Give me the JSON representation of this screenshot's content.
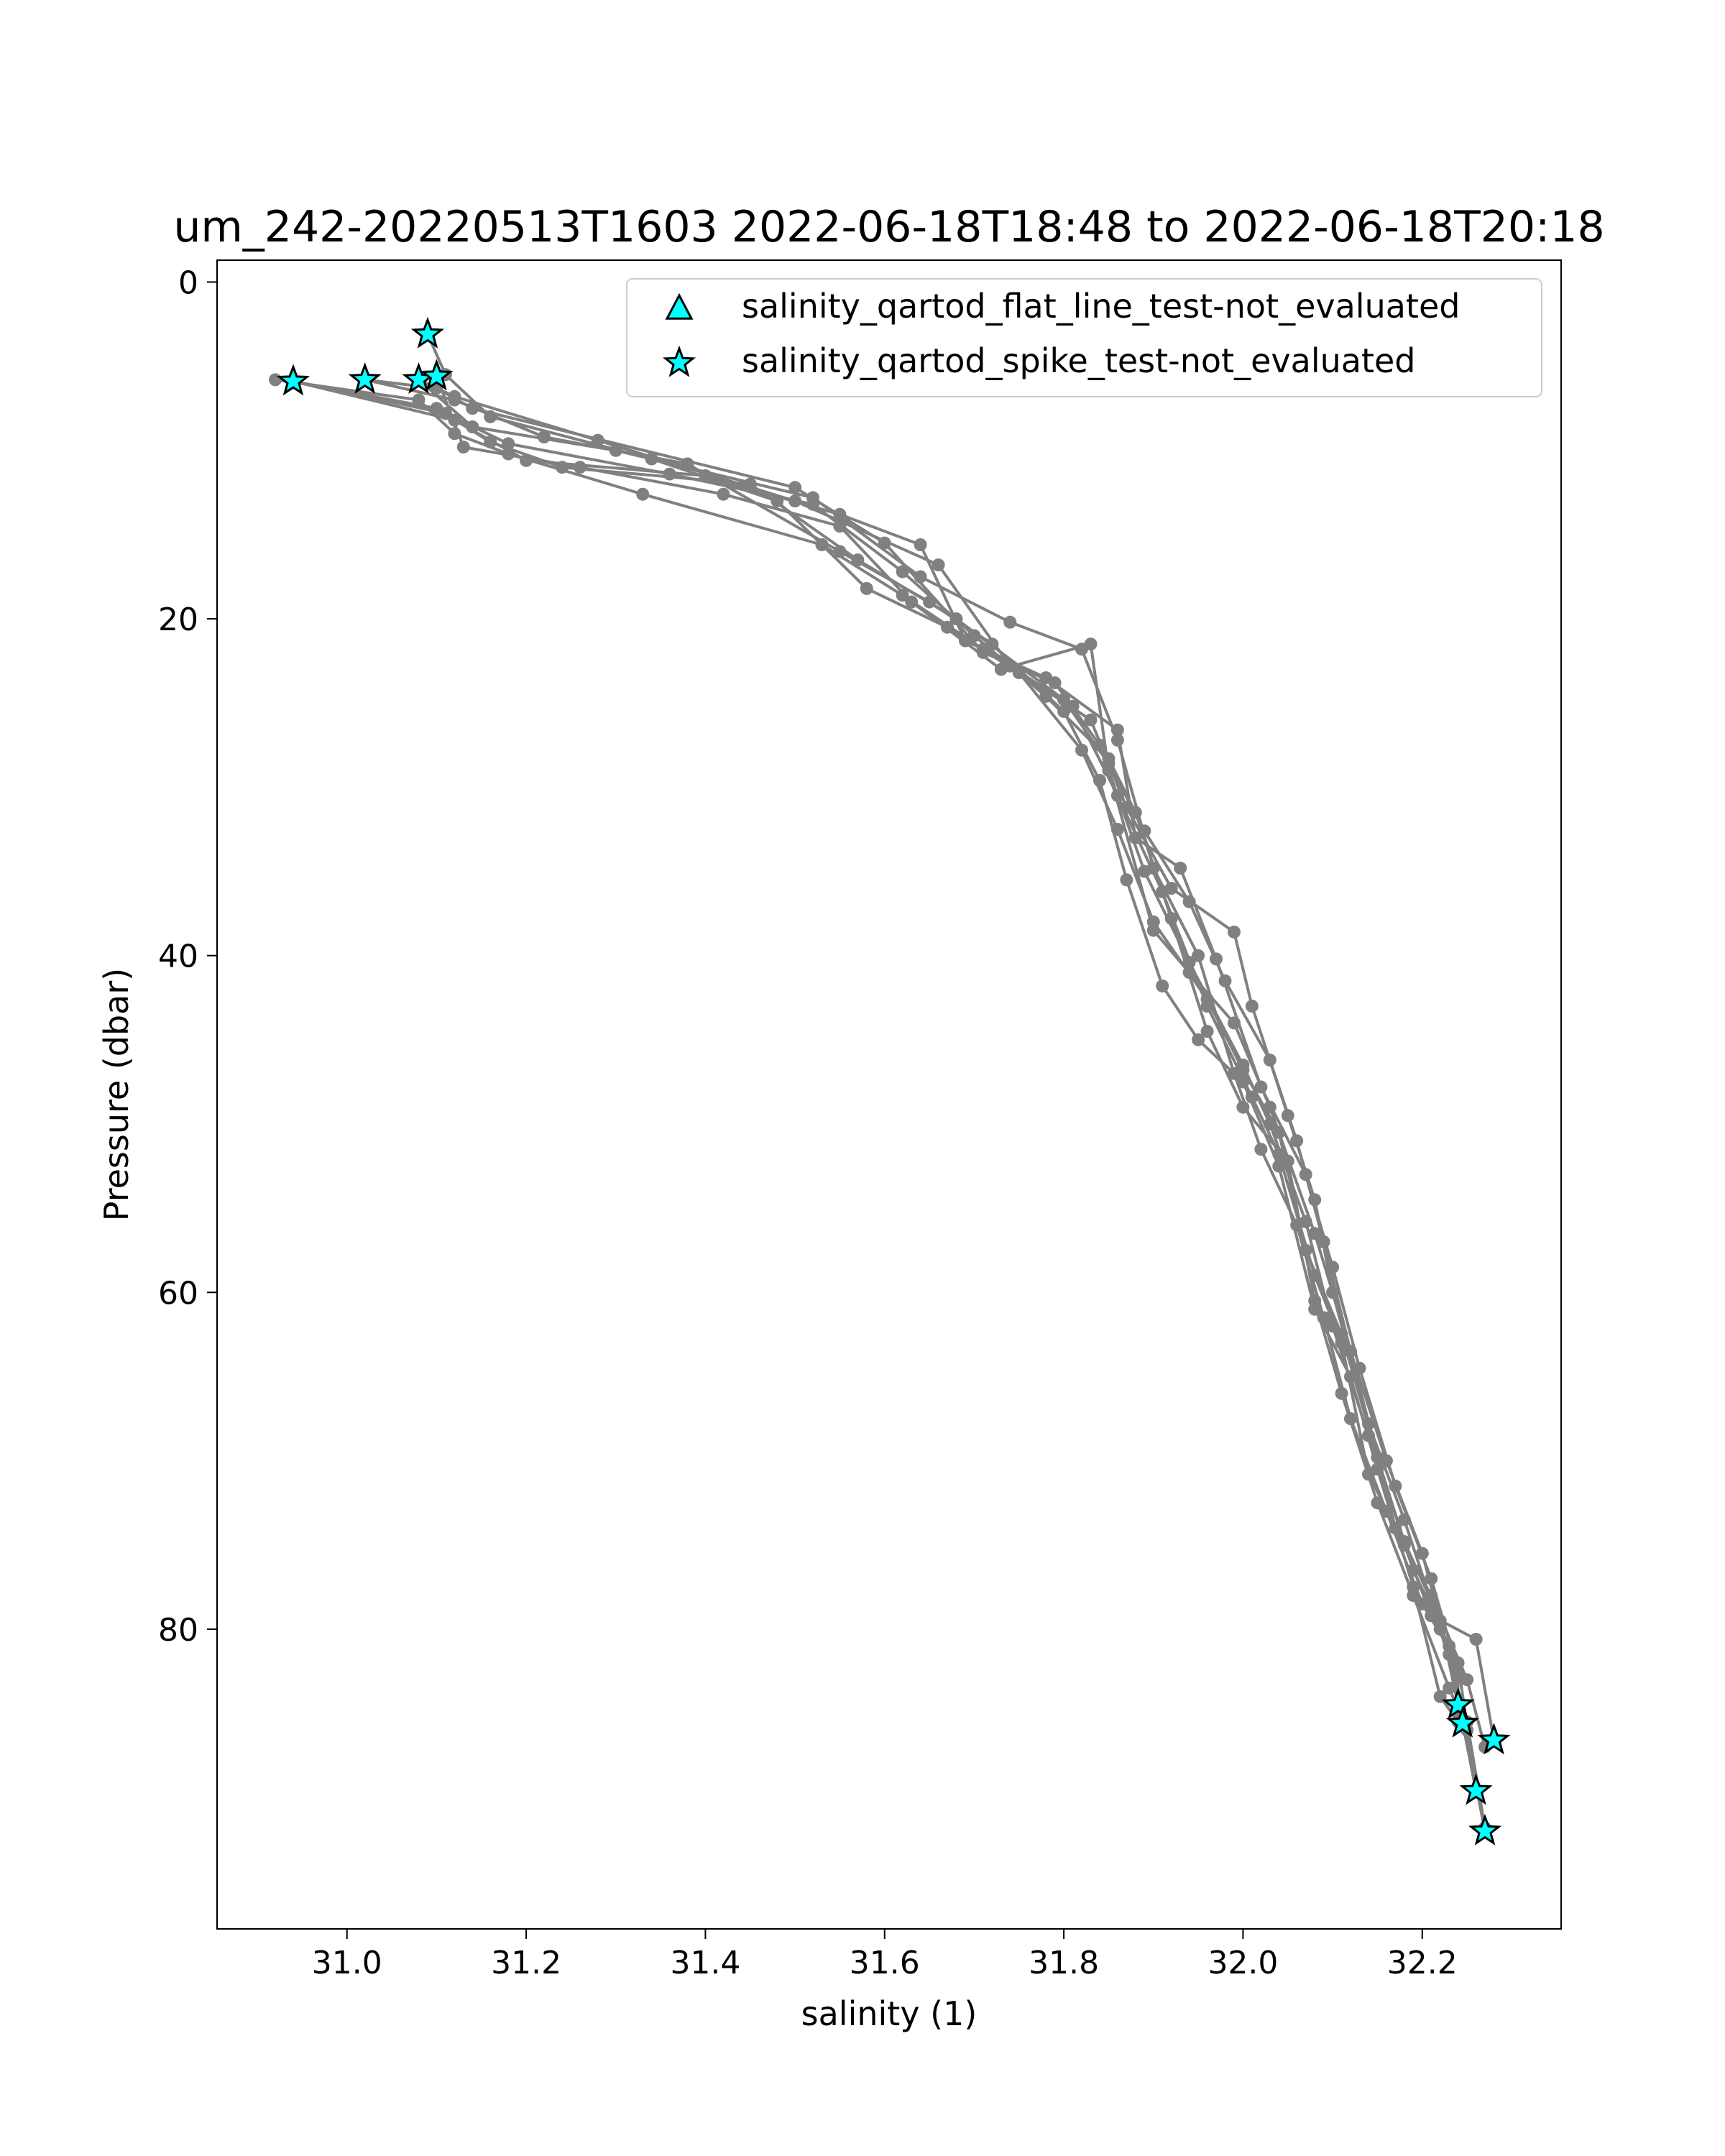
{
  "chart_data": {
    "type": "scatter",
    "title": "um_242-20220513T1603 2022-06-18T18:48 to 2022-06-18T20:18",
    "xlabel": "salinity (1)",
    "ylabel": "Pressure (dbar)",
    "xlim": [
      30.855,
      32.355
    ],
    "ylim": [
      97.8,
      -1.3
    ],
    "y_inverted": true,
    "grid": false,
    "legend_position": "top-right",
    "x_ticks": [
      "31.0",
      "31.2",
      "31.4",
      "31.6",
      "31.8",
      "32.0",
      "32.2"
    ],
    "y_ticks": [
      "0",
      "20",
      "40",
      "60",
      "80"
    ],
    "colors": {
      "profile": "#808080",
      "flag_fill": "#00ffff",
      "flag_edge": "#000000"
    },
    "legend": [
      {
        "label": "salinity_qartod_flat_line_test-not_evaluated",
        "marker": "triangle"
      },
      {
        "label": "salinity_qartod_spike_test-not_evaluated",
        "marker": "star"
      }
    ],
    "profiles": [
      {
        "salinity": [
          30.92,
          31.08,
          31.12,
          31.18,
          31.33,
          31.53,
          31.62,
          31.71,
          31.83,
          31.87,
          31.92,
          31.99,
          32.01,
          32.05,
          32.08,
          32.1,
          32.14,
          32.18,
          32.22,
          32.25,
          32.27
        ],
        "pressure": [
          5.8,
          7.0,
          9.0,
          10.2,
          12.6,
          15.6,
          18.6,
          21.8,
          26.0,
          31.2,
          36.0,
          38.6,
          43.0,
          49.5,
          54.5,
          60.0,
          67.8,
          73.5,
          80.0,
          85.5,
          91.8
        ]
      },
      {
        "salinity": [
          30.94,
          31.1,
          31.16,
          31.24,
          31.45,
          31.57,
          31.68,
          31.8,
          31.85,
          31.89,
          31.94,
          31.98,
          32.03,
          32.06,
          32.09,
          32.12,
          32.16,
          32.2,
          32.23,
          32.26
        ],
        "pressure": [
          5.9,
          7.5,
          9.5,
          11.0,
          12.0,
          16.5,
          20.0,
          24.8,
          28.6,
          32.6,
          36.8,
          41.5,
          46.2,
          51.0,
          57.0,
          63.5,
          70.0,
          75.5,
          81.5,
          89.6
        ]
      },
      {
        "salinity": [
          30.94,
          31.12,
          31.2,
          31.4,
          31.55,
          31.64,
          31.69,
          31.78,
          31.86,
          31.88,
          31.93,
          31.97,
          32.02,
          32.07,
          32.1,
          32.13,
          32.17,
          32.21,
          32.24,
          32.24
        ],
        "pressure": [
          5.9,
          8.2,
          10.6,
          11.5,
          13.8,
          15.6,
          21.3,
          23.5,
          26.6,
          33.0,
          34.8,
          40.2,
          47.8,
          53.0,
          58.5,
          64.5,
          71.5,
          77.0,
          82.5,
          85.0
        ]
      },
      {
        "salinity": [
          30.94,
          31.11,
          31.18,
          31.36,
          31.52,
          31.62,
          31.7,
          31.78,
          31.85,
          31.88,
          31.92,
          31.96,
          32.0,
          32.05,
          32.08,
          32.11,
          32.15,
          32.19,
          32.23,
          32.25
        ],
        "pressure": [
          5.9,
          7.8,
          9.6,
          11.4,
          13.2,
          17.2,
          21.0,
          24.6,
          28.3,
          31.5,
          37.8,
          44.5,
          49.0,
          52.2,
          60.5,
          66.0,
          72.5,
          78.0,
          83.5,
          86.0
        ]
      },
      {
        "salinity": [
          31.02,
          31.12,
          31.22,
          31.38,
          31.55,
          31.65,
          31.72,
          31.8,
          31.84,
          31.87,
          31.91,
          31.95,
          32.0,
          32.04,
          32.08,
          32.12,
          32.15,
          32.19,
          32.22,
          32.24
        ],
        "pressure": [
          5.8,
          7.0,
          9.2,
          10.8,
          16.0,
          19.0,
          21.5,
          25.5,
          29.6,
          35.5,
          41.8,
          45.0,
          47.5,
          52.5,
          61.0,
          65.0,
          70.5,
          77.5,
          84.0,
          85.5
        ]
      },
      {
        "salinity": [
          31.02,
          31.1,
          31.14,
          31.5,
          31.6,
          31.71,
          31.79,
          31.84,
          31.89,
          31.94,
          32.0,
          32.03,
          32.07,
          32.1,
          32.14,
          32.18,
          32.22,
          32.24
        ],
        "pressure": [
          5.8,
          6.3,
          7.5,
          12.2,
          15.5,
          22.0,
          23.8,
          27.5,
          35.0,
          40.4,
          46.5,
          50.0,
          55.8,
          62.0,
          68.5,
          74.8,
          79.5,
          84.5
        ]
      },
      {
        "salinity": [
          31.08,
          31.14,
          31.3,
          31.52,
          31.64,
          31.74,
          31.82,
          31.86,
          31.9,
          31.95,
          31.99,
          32.02,
          32.06,
          32.09,
          32.12,
          32.16,
          32.2,
          32.24,
          32.26
        ],
        "pressure": [
          5.8,
          8.6,
          10.0,
          12.8,
          17.5,
          20.2,
          21.8,
          27.2,
          34.8,
          40.0,
          47.0,
          51.5,
          56.0,
          61.5,
          67.5,
          73.0,
          78.5,
          82.0,
          89.6
        ]
      },
      {
        "salinity": [
          31.08,
          31.12,
          31.28,
          31.5,
          31.66,
          31.74,
          31.81,
          31.86,
          31.91,
          31.96,
          32.01,
          32.04,
          32.08,
          32.11,
          32.14,
          32.18,
          32.21,
          32.26,
          32.28
        ],
        "pressure": [
          5.8,
          6.8,
          9.4,
          13.0,
          16.8,
          22.8,
          25.2,
          30.5,
          36.2,
          43.0,
          48.4,
          51.8,
          59.0,
          63.0,
          70.8,
          75.0,
          79.2,
          80.6,
          86.6
        ]
      },
      {
        "salinity": [
          31.09,
          31.11,
          31.16,
          31.34,
          31.48,
          31.58,
          31.67,
          31.75,
          31.82,
          31.86,
          31.9,
          31.96,
          32.0,
          32.04,
          32.07,
          32.11,
          32.15,
          32.19,
          32.23,
          32.27
        ],
        "pressure": [
          3.1,
          5.5,
          8.0,
          10.5,
          13.0,
          18.2,
          20.5,
          23.2,
          27.8,
          32.5,
          38.0,
          42.6,
          46.8,
          50.5,
          57.5,
          62.5,
          69.8,
          76.5,
          81.0,
          92.0
        ]
      },
      {
        "salinity": [
          31.1,
          31.13,
          31.26,
          31.42,
          31.55,
          31.63,
          31.73,
          31.83,
          31.85,
          31.9,
          31.94,
          31.99,
          32.03,
          32.08,
          32.12,
          32.17,
          32.21,
          32.25,
          32.27
        ],
        "pressure": [
          5.6,
          9.8,
          11.0,
          12.6,
          14.5,
          19.0,
          23.0,
          21.5,
          29.0,
          38.5,
          41.0,
          44.0,
          49.0,
          56.5,
          63.5,
          74.0,
          78.0,
          83.0,
          87.0
        ]
      }
    ],
    "spike_flags": {
      "salinity": [
        30.94,
        31.02,
        31.08,
        31.09,
        31.1,
        32.24,
        32.245,
        32.28,
        32.26,
        32.27
      ],
      "pressure": [
        5.9,
        5.8,
        5.8,
        3.1,
        5.6,
        84.5,
        85.6,
        86.6,
        89.6,
        92.0
      ]
    }
  }
}
